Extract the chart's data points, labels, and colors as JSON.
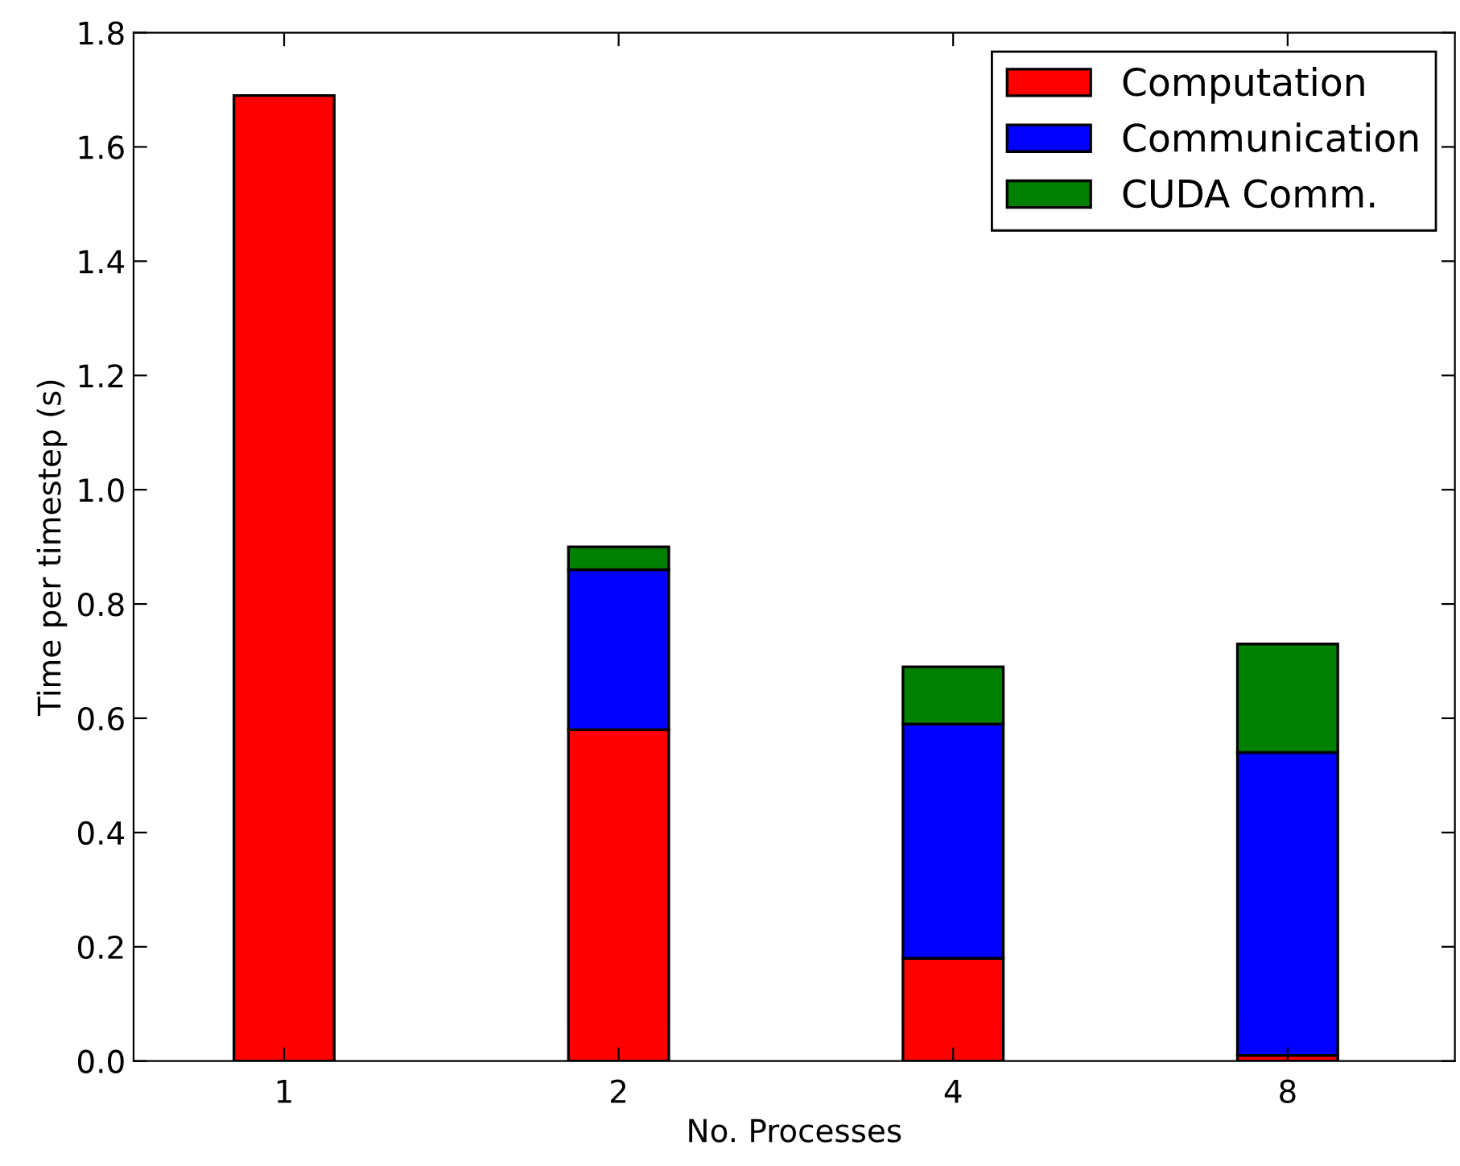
{
  "chart_data": {
    "type": "bar",
    "stacked": true,
    "xlabel": "No. Processes",
    "ylabel": "Time per timestep (s)",
    "categories": [
      "1",
      "2",
      "4",
      "8"
    ],
    "series": [
      {
        "name": "Computation",
        "color": "#ff0000",
        "values": [
          1.69,
          0.58,
          0.18,
          0.01
        ]
      },
      {
        "name": "Communication",
        "color": "#0000ff",
        "values": [
          null,
          0.28,
          0.41,
          0.53
        ]
      },
      {
        "name": "CUDA Comm.",
        "color": "#008000",
        "values": [
          null,
          0.04,
          0.1,
          0.19
        ]
      }
    ],
    "ylim": [
      0,
      1.8
    ],
    "yticks": [
      {
        "value": 0,
        "label": "0.0"
      },
      {
        "value": 0.2,
        "label": "0.2"
      },
      {
        "value": 0.4,
        "label": "0.4"
      },
      {
        "value": 0.6,
        "label": "0.6"
      },
      {
        "value": 0.8,
        "label": "0.8"
      },
      {
        "value": 1.0,
        "label": "1.0"
      },
      {
        "value": 1.2,
        "label": "1.2"
      },
      {
        "value": 1.4,
        "label": "1.4"
      },
      {
        "value": 1.6,
        "label": "1.6"
      },
      {
        "value": 1.8,
        "label": "1.8"
      }
    ],
    "grid": false,
    "legend": "top right"
  }
}
